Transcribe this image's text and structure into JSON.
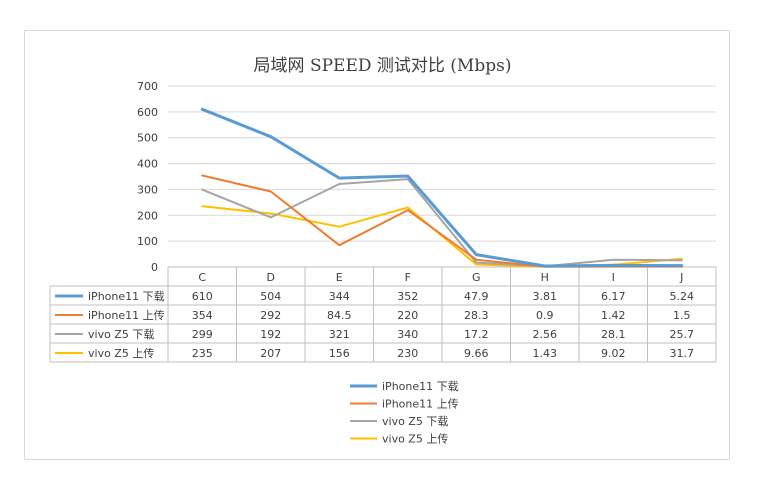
{
  "chart_data": {
    "type": "line",
    "title": "局域网 SPEED 测试对比 (Mbps)",
    "categories": [
      "C",
      "D",
      "E",
      "F",
      "G",
      "H",
      "I",
      "J"
    ],
    "ylim": [
      0,
      700
    ],
    "yticks": [
      0,
      100,
      200,
      300,
      400,
      500,
      600,
      700
    ],
    "grid": true,
    "legend_position": "bottom",
    "series": [
      {
        "name": "iPhone11 下载",
        "color": "#5b9bd5",
        "values": [
          "610",
          "504",
          "344",
          "352",
          "47.9",
          "3.81",
          "6.17",
          "5.24"
        ]
      },
      {
        "name": "iPhone11 上传",
        "color": "#ed7d31",
        "values": [
          "354",
          "292",
          "84.5",
          "220",
          "28.3",
          "0.9",
          "1.42",
          "1.5"
        ]
      },
      {
        "name": "vivo Z5 下载",
        "color": "#a5a5a5",
        "values": [
          "299",
          "192",
          "321",
          "340",
          "17.2",
          "2.56",
          "28.1",
          "25.7"
        ]
      },
      {
        "name": "vivo Z5 上传",
        "color": "#ffc000",
        "values": [
          "235",
          "207",
          "156",
          "230",
          "9.66",
          "1.43",
          "9.02",
          "31.7"
        ]
      }
    ]
  }
}
